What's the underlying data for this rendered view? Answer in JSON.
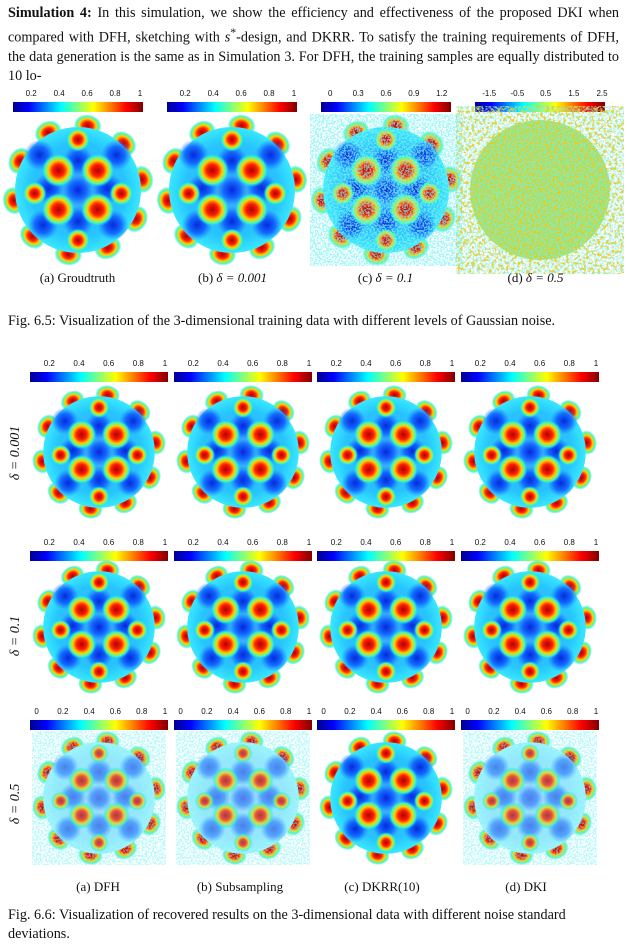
{
  "paragraph": {
    "heading": "Simulation 4:",
    "text_part1": " In this simulation, we show the efficiency and effectiveness of the proposed DKI when compared with DFH, sketching with ",
    "s_star": "s",
    "sup": "*",
    "text_part2": "-design, and DKRR. To satisfy the training requirements of DFH, the data generation is the same as in Simulation 3.  For DFH, the training samples are equally distributed to 10 lo-"
  },
  "fig65": {
    "colorbars": [
      {
        "ticks": [
          "0.2",
          "0.4",
          "0.6",
          "0.8",
          "1"
        ],
        "range": [
          0.07,
          1.0
        ]
      },
      {
        "ticks": [
          "0.2",
          "0.4",
          "0.6",
          "0.8",
          "1"
        ],
        "range": [
          0.07,
          1.0
        ]
      },
      {
        "ticks": [
          "0",
          "0.3",
          "0.6",
          "0.9",
          "1.2"
        ],
        "range": [
          -0.1,
          1.3
        ]
      },
      {
        "ticks": [
          "-1.5",
          "-0.5",
          "0.5",
          "1.5",
          "2.5"
        ],
        "range": [
          -2.0,
          2.6
        ]
      }
    ],
    "subcaptions": [
      {
        "label": "(a) Groudtruth",
        "math": ""
      },
      {
        "label": "(b) ",
        "math": "δ = 0.001"
      },
      {
        "label": "(c) ",
        "math": "δ = 0.1"
      },
      {
        "label": "(d) ",
        "math": "δ = 0.5"
      }
    ],
    "caption": "Fig. 6.5:  Visualization of the 3-dimensional training data with different levels of Gaussian noise."
  },
  "fig66": {
    "row_labels": [
      "δ = 0.001",
      "δ = 0.1",
      "δ = 0.5"
    ],
    "row_colorbars": [
      {
        "ticks": [
          "0.2",
          "0.4",
          "0.6",
          "0.8",
          "1"
        ],
        "range": [
          0.07,
          1.0
        ]
      },
      {
        "ticks": [
          "0.2",
          "0.4",
          "0.6",
          "0.8",
          "1"
        ],
        "range": [
          0.07,
          1.0
        ]
      },
      {
        "ticks": [
          "0",
          "0.2",
          "0.4",
          "0.6",
          "0.8",
          "1"
        ],
        "range": [
          -0.05,
          1.0
        ]
      }
    ],
    "subcaptions": [
      "(a) DFH",
      "(b) Subsampling",
      "(c) DKRR(10)",
      "(d) DKI"
    ],
    "caption": "Fig. 6.6: Visualization of recovered results on the 3-dimensional data with different noise standard deviations."
  },
  "colors": {
    "colormap": [
      "#00008f",
      "#0000ff",
      "#00ffff",
      "#ffff00",
      "#ff0000",
      "#800000"
    ]
  }
}
